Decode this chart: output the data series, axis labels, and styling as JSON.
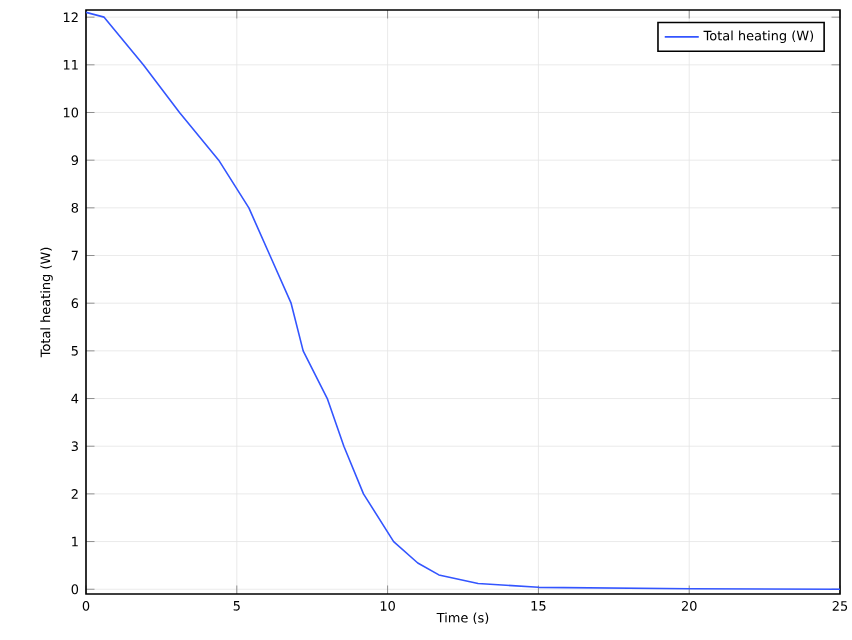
{
  "chart_data": {
    "type": "line",
    "xlabel": "Time (s)",
    "ylabel": "Total heating (W)",
    "series": [
      {
        "name": "Total heating (W)",
        "color": "#3355ff",
        "x": [
          0,
          0.6,
          1.9,
          3.1,
          4.4,
          5.4,
          6.1,
          6.8,
          7.2,
          8,
          8.55,
          9.2,
          10.2,
          11,
          11.7,
          13,
          15,
          20,
          25
        ],
        "values": [
          12.1,
          12,
          11,
          10,
          9,
          8,
          7,
          6,
          5,
          4,
          3,
          2,
          1,
          0.55,
          0.3,
          0.12,
          0.04,
          0.01,
          0
        ]
      }
    ],
    "xlim": [
      0,
      25
    ],
    "ylim": [
      -0.1,
      12.15
    ],
    "xticks": [
      0,
      5,
      10,
      15,
      20,
      25
    ],
    "yticks": [
      0,
      1,
      2,
      3,
      4,
      5,
      6,
      7,
      8,
      9,
      10,
      11,
      12
    ],
    "grid": true,
    "legend": "top right",
    "marker": "none",
    "line_style": "solid"
  }
}
